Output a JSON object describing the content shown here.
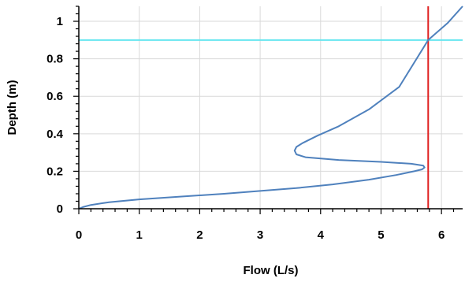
{
  "chart_data": {
    "type": "line",
    "title": "",
    "xlabel": "Flow (L/s)",
    "ylabel": "Depth (m)",
    "xlim": [
      0,
      6.35
    ],
    "ylim": [
      0,
      1.08
    ],
    "x_ticks": [
      0,
      1,
      2,
      3,
      4,
      5,
      6
    ],
    "y_ticks": [
      0,
      0.2,
      0.4,
      0.6,
      0.8,
      1
    ],
    "x_tick_labels": [
      "0",
      "1",
      "2",
      "3",
      "4",
      "5",
      "6"
    ],
    "y_tick_labels": [
      "0",
      "0.2",
      "0.4",
      "0.6",
      "0.8",
      "1"
    ],
    "grid": true,
    "legend": "none",
    "series": [
      {
        "color": "#4f81bd",
        "x": [
          0.0,
          0.08,
          0.2,
          0.5,
          1.0,
          1.7,
          2.4,
          3.0,
          3.6,
          4.2,
          4.8,
          5.25,
          5.55,
          5.68,
          5.72,
          5.7,
          5.5,
          5.0,
          4.3,
          3.75,
          3.6,
          3.57,
          3.6,
          3.7,
          3.95,
          4.3,
          4.8,
          5.3,
          5.78,
          6.1,
          6.35
        ],
        "y": [
          0.0,
          0.01,
          0.02,
          0.035,
          0.05,
          0.065,
          0.08,
          0.095,
          0.11,
          0.13,
          0.155,
          0.18,
          0.2,
          0.21,
          0.22,
          0.23,
          0.24,
          0.25,
          0.26,
          0.275,
          0.29,
          0.31,
          0.33,
          0.35,
          0.39,
          0.44,
          0.53,
          0.65,
          0.9,
          0.99,
          1.08
        ]
      }
    ],
    "reference_lines": [
      {
        "orientation": "horizontal",
        "value": 0.9,
        "color": "#66e6f0"
      },
      {
        "orientation": "vertical",
        "value": 5.78,
        "color": "#e02020"
      }
    ]
  }
}
